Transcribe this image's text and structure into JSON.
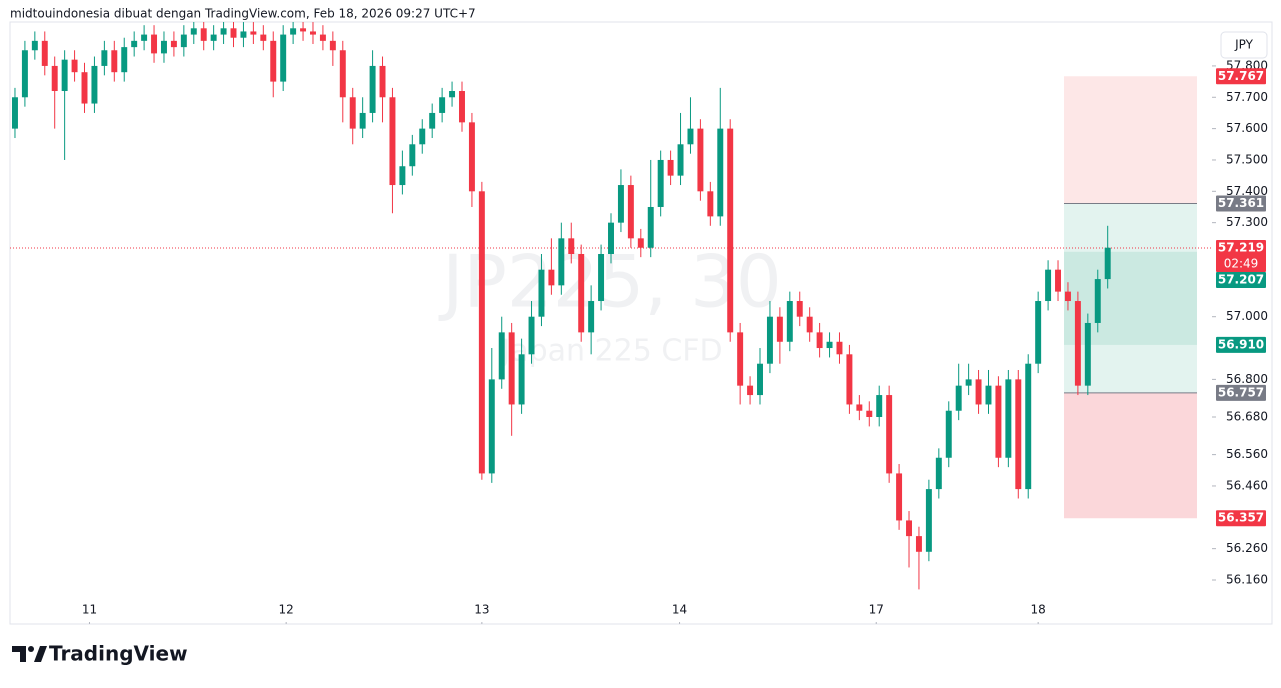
{
  "header": "midtouindonesia dibuat dengan TradingView.com, Feb 18, 2026 09:27 UTC+7",
  "currency": "JPY",
  "footer_brand": "TradingView",
  "watermark": {
    "symbol": "JP225, 30",
    "description": "Japan 225 CFD"
  },
  "chart_data": {
    "type": "candlestick",
    "up_color": "#089981",
    "down_color": "#f23645",
    "xlim": [
      -0.5,
      120.5
    ],
    "xticks": [
      {
        "value": 7.5,
        "label": "11"
      },
      {
        "value": 27.3,
        "label": "12"
      },
      {
        "value": 47,
        "label": "13"
      },
      {
        "value": 66.9,
        "label": "14"
      },
      {
        "value": 86.7,
        "label": "17"
      },
      {
        "value": 103,
        "label": "18"
      }
    ],
    "ylim": [
      56.026,
      57.921
    ],
    "yticks": [
      {
        "value": 57.8,
        "label": "57.800"
      },
      {
        "value": 57.7,
        "label": "57.700"
      },
      {
        "value": 57.6,
        "label": "57.600"
      },
      {
        "value": 57.5,
        "label": "57.500"
      },
      {
        "value": 57.4,
        "label": "57.400"
      },
      {
        "value": 57.3,
        "label": "57.300"
      },
      {
        "value": 57,
        "label": "57.000"
      },
      {
        "value": 56.8,
        "label": "56.800"
      },
      {
        "value": 56.68,
        "label": "56.680"
      },
      {
        "value": 56.56,
        "label": "56.560"
      },
      {
        "value": 56.46,
        "label": "56.460"
      },
      {
        "value": 56.26,
        "label": "56.260"
      },
      {
        "value": 56.16,
        "label": "56.160"
      }
    ],
    "price_labels": [
      {
        "value": 57.767,
        "label": "57.767",
        "color": "#f23645"
      },
      {
        "value": 57.361,
        "label": "57.361",
        "color": "#787b86"
      },
      {
        "value": 57.219,
        "label": "57.219",
        "color": "#f23645",
        "countdown": "02:49"
      },
      {
        "value": 57.207,
        "label": "57.207",
        "color": "#089981"
      },
      {
        "value": 56.91,
        "label": "56.910",
        "color": "#089981"
      },
      {
        "value": 56.757,
        "label": "56.757",
        "color": "#787b86"
      },
      {
        "value": 56.357,
        "label": "56.357",
        "color": "#f23645"
      }
    ],
    "candles": [
      [
        57.6,
        57.73,
        57.57,
        57.7
      ],
      [
        57.7,
        57.88,
        57.67,
        57.85
      ],
      [
        57.85,
        57.91,
        57.82,
        57.88
      ],
      [
        57.88,
        57.91,
        57.77,
        57.8
      ],
      [
        57.8,
        57.83,
        57.6,
        57.72
      ],
      [
        57.72,
        57.85,
        57.5,
        57.82
      ],
      [
        57.82,
        57.85,
        57.75,
        57.78
      ],
      [
        57.78,
        57.81,
        57.65,
        57.68
      ],
      [
        57.68,
        57.83,
        57.65,
        57.8
      ],
      [
        57.8,
        57.88,
        57.77,
        57.85
      ],
      [
        57.85,
        57.88,
        57.75,
        57.78
      ],
      [
        57.78,
        57.89,
        57.75,
        57.86
      ],
      [
        57.86,
        57.91,
        57.83,
        57.88
      ],
      [
        57.88,
        57.93,
        57.85,
        57.9
      ],
      [
        57.9,
        57.93,
        57.81,
        57.84
      ],
      [
        57.84,
        57.91,
        57.81,
        57.88
      ],
      [
        57.88,
        57.91,
        57.83,
        57.86
      ],
      [
        57.86,
        57.93,
        57.83,
        57.9
      ],
      [
        57.9,
        57.95,
        57.87,
        57.92
      ],
      [
        57.92,
        57.95,
        57.85,
        57.88
      ],
      [
        57.88,
        57.93,
        57.85,
        57.9
      ],
      [
        57.9,
        57.95,
        57.87,
        57.92
      ],
      [
        57.92,
        57.95,
        57.86,
        57.89
      ],
      [
        57.89,
        57.94,
        57.86,
        57.91
      ],
      [
        57.91,
        57.94,
        57.87,
        57.9
      ],
      [
        57.9,
        57.93,
        57.85,
        57.88
      ],
      [
        57.88,
        57.91,
        57.7,
        57.75
      ],
      [
        57.75,
        57.93,
        57.72,
        57.9
      ],
      [
        57.9,
        57.95,
        57.87,
        57.92
      ],
      [
        57.92,
        57.95,
        57.88,
        57.91
      ],
      [
        57.91,
        57.94,
        57.87,
        57.9
      ],
      [
        57.9,
        57.93,
        57.85,
        57.88
      ],
      [
        57.88,
        57.91,
        57.8,
        57.85
      ],
      [
        57.85,
        57.88,
        57.62,
        57.7
      ],
      [
        57.7,
        57.73,
        57.55,
        57.6
      ],
      [
        57.6,
        57.7,
        57.57,
        57.65
      ],
      [
        57.65,
        57.85,
        57.62,
        57.8
      ],
      [
        57.8,
        57.83,
        57.62,
        57.7
      ],
      [
        57.7,
        57.73,
        57.33,
        57.42
      ],
      [
        57.42,
        57.53,
        57.39,
        57.48
      ],
      [
        57.48,
        57.58,
        57.45,
        57.55
      ],
      [
        57.55,
        57.63,
        57.52,
        57.6
      ],
      [
        57.6,
        57.68,
        57.57,
        57.65
      ],
      [
        57.65,
        57.73,
        57.62,
        57.7
      ],
      [
        57.7,
        57.75,
        57.67,
        57.72
      ],
      [
        57.72,
        57.75,
        57.59,
        57.62
      ],
      [
        57.62,
        57.65,
        57.35,
        57.4
      ],
      [
        57.4,
        57.43,
        56.48,
        56.5
      ],
      [
        56.5,
        56.9,
        56.47,
        56.8
      ],
      [
        56.8,
        57.0,
        56.77,
        56.95
      ],
      [
        56.95,
        56.98,
        56.62,
        56.72
      ],
      [
        56.72,
        56.93,
        56.69,
        56.88
      ],
      [
        56.88,
        57.05,
        56.85,
        57.0
      ],
      [
        57.0,
        57.2,
        56.97,
        57.15
      ],
      [
        57.15,
        57.25,
        57.07,
        57.1
      ],
      [
        57.1,
        57.3,
        57.07,
        57.25
      ],
      [
        57.25,
        57.3,
        57.17,
        57.2
      ],
      [
        57.2,
        57.23,
        56.92,
        56.95
      ],
      [
        56.95,
        57.1,
        56.88,
        57.05
      ],
      [
        57.05,
        57.23,
        57.02,
        57.2
      ],
      [
        57.2,
        57.33,
        57.17,
        57.3
      ],
      [
        57.3,
        57.47,
        57.27,
        57.42
      ],
      [
        57.42,
        57.45,
        57.22,
        57.25
      ],
      [
        57.25,
        57.28,
        57.19,
        57.22
      ],
      [
        57.22,
        57.5,
        57.19,
        57.35
      ],
      [
        57.35,
        57.53,
        57.32,
        57.5
      ],
      [
        57.5,
        57.53,
        57.42,
        57.45
      ],
      [
        57.45,
        57.65,
        57.42,
        57.55
      ],
      [
        57.55,
        57.7,
        57.52,
        57.6
      ],
      [
        57.6,
        57.63,
        57.37,
        57.4
      ],
      [
        57.4,
        57.43,
        57.29,
        57.32
      ],
      [
        57.32,
        57.73,
        57.29,
        57.6
      ],
      [
        57.6,
        57.63,
        56.92,
        56.95
      ],
      [
        56.95,
        56.98,
        56.72,
        56.78
      ],
      [
        56.78,
        56.81,
        56.72,
        56.75
      ],
      [
        56.75,
        56.9,
        56.72,
        56.85
      ],
      [
        56.85,
        57.05,
        56.82,
        57.0
      ],
      [
        57.0,
        57.03,
        56.85,
        56.92
      ],
      [
        56.92,
        57.08,
        56.89,
        57.05
      ],
      [
        57.05,
        57.08,
        56.97,
        57.0
      ],
      [
        57.0,
        57.03,
        56.92,
        56.95
      ],
      [
        56.95,
        56.98,
        56.87,
        56.9
      ],
      [
        56.9,
        56.95,
        56.87,
        56.92
      ],
      [
        56.92,
        56.95,
        56.85,
        56.88
      ],
      [
        56.88,
        56.91,
        56.69,
        56.72
      ],
      [
        56.72,
        56.75,
        56.67,
        56.7
      ],
      [
        56.7,
        56.73,
        56.65,
        56.68
      ],
      [
        56.68,
        56.78,
        56.65,
        56.75
      ],
      [
        56.75,
        56.78,
        56.47,
        56.5
      ],
      [
        56.5,
        56.53,
        56.32,
        56.35
      ],
      [
        56.35,
        56.38,
        56.2,
        56.3
      ],
      [
        56.3,
        56.33,
        56.13,
        56.25
      ],
      [
        56.25,
        56.48,
        56.22,
        56.45
      ],
      [
        56.45,
        56.58,
        56.42,
        56.55
      ],
      [
        56.55,
        56.73,
        56.52,
        56.7
      ],
      [
        56.7,
        56.85,
        56.67,
        56.78
      ],
      [
        56.78,
        56.85,
        56.75,
        56.8
      ],
      [
        56.8,
        56.83,
        56.69,
        56.72
      ],
      [
        56.72,
        56.83,
        56.69,
        56.78
      ],
      [
        56.78,
        56.81,
        56.52,
        56.55
      ],
      [
        56.55,
        56.83,
        56.52,
        56.8
      ],
      [
        56.8,
        56.83,
        56.42,
        56.45
      ],
      [
        56.45,
        56.88,
        56.42,
        56.85
      ],
      [
        56.85,
        57.08,
        56.82,
        57.05
      ],
      [
        57.05,
        57.18,
        57.02,
        57.15
      ],
      [
        57.15,
        57.18,
        57.05,
        57.08
      ],
      [
        57.08,
        57.11,
        57.02,
        57.05
      ],
      [
        57.05,
        57.08,
        56.75,
        56.78
      ],
      [
        56.78,
        57.01,
        56.75,
        56.98
      ],
      [
        56.98,
        57.15,
        56.95,
        57.12
      ],
      [
        57.12,
        57.29,
        57.09,
        57.22
      ]
    ]
  }
}
